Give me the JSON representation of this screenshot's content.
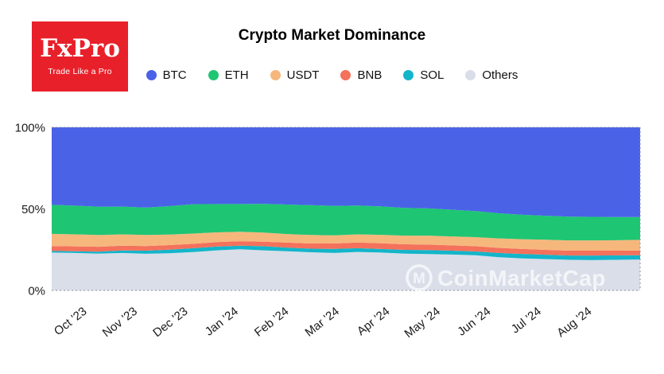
{
  "logo": {
    "brand": "FxPro",
    "tagline": "Trade Like a Pro"
  },
  "watermark": {
    "text": "CoinMarketCap",
    "icon": "m-in-circle-icon"
  },
  "chart_data": {
    "type": "area",
    "stacked": true,
    "title": "Crypto Market Dominance",
    "unit": "%",
    "ylim": [
      0,
      100
    ],
    "grid": "dotted top, bottom and right borders only",
    "legend_position": "top",
    "y_ticks": [
      "100%",
      "50%",
      "0%"
    ],
    "y_tick_values": [
      100,
      50,
      0
    ],
    "x_labels": [
      "Oct '23",
      "Nov '23",
      "Dec '23",
      "Jan '24",
      "Feb '24",
      "Mar '24",
      "Apr '24",
      "May '24",
      "Jun '24",
      "Jul '24",
      "Aug '24"
    ],
    "x_range_note": "weekly samples, mid-Sep 2023 to end of Aug 2024",
    "stack_order_bottom_to_top": [
      "Others",
      "SOL",
      "BNB",
      "USDT",
      "ETH",
      "BTC"
    ],
    "series": [
      {
        "name": "BTC",
        "color": "#4a62e6",
        "values": [
          47.5,
          48.0,
          48.7,
          48.6,
          49.2,
          48.3,
          47.1,
          47.0,
          47.0,
          46.9,
          47.3,
          47.7,
          48.2,
          47.9,
          48.5,
          49.4,
          49.7,
          50.5,
          51.3,
          52.7,
          53.6,
          54.2,
          54.8,
          54.9,
          55.0,
          55.0
        ]
      },
      {
        "name": "ETH",
        "color": "#1ec573",
        "values": [
          17.8,
          17.6,
          17.3,
          17.0,
          16.8,
          17.4,
          18.0,
          17.4,
          17.0,
          17.6,
          18.1,
          18.3,
          18.0,
          17.7,
          17.4,
          17.0,
          16.7,
          16.4,
          16.0,
          15.4,
          15.0,
          14.7,
          14.5,
          14.4,
          14.2,
          14.0
        ]
      },
      {
        "name": "USDT",
        "color": "#f6b77c",
        "values": [
          7.5,
          7.4,
          7.2,
          7.0,
          6.8,
          6.5,
          6.3,
          6.0,
          5.8,
          5.6,
          5.3,
          5.2,
          5.0,
          5.0,
          5.2,
          5.3,
          5.5,
          5.5,
          5.6,
          5.8,
          6.0,
          6.2,
          6.3,
          6.3,
          6.4,
          6.5
        ]
      },
      {
        "name": "BNB",
        "color": "#f4715c",
        "values": [
          3.0,
          3.0,
          3.0,
          2.9,
          2.8,
          2.8,
          2.7,
          2.7,
          2.8,
          2.8,
          3.0,
          3.2,
          3.3,
          3.5,
          3.5,
          3.4,
          3.3,
          3.2,
          3.2,
          3.1,
          3.0,
          3.0,
          3.0,
          3.0,
          2.9,
          2.9
        ]
      },
      {
        "name": "SOL",
        "color": "#13b5ca",
        "values": [
          1.0,
          1.0,
          1.2,
          1.5,
          1.9,
          2.2,
          2.4,
          2.3,
          2.2,
          2.5,
          2.3,
          2.2,
          2.5,
          2.3,
          2.2,
          2.3,
          2.5,
          2.4,
          2.3,
          2.6,
          2.8,
          2.7,
          2.6,
          2.8,
          2.7,
          2.6
        ]
      },
      {
        "name": "Others",
        "color": "#d9dee9",
        "values": [
          23.2,
          23.0,
          22.6,
          23.0,
          22.5,
          22.8,
          23.5,
          24.6,
          25.2,
          24.6,
          24.0,
          23.4,
          23.0,
          23.6,
          23.2,
          22.6,
          22.3,
          22.0,
          21.6,
          20.4,
          19.6,
          19.2,
          18.8,
          18.6,
          18.8,
          19.0
        ]
      }
    ]
  }
}
